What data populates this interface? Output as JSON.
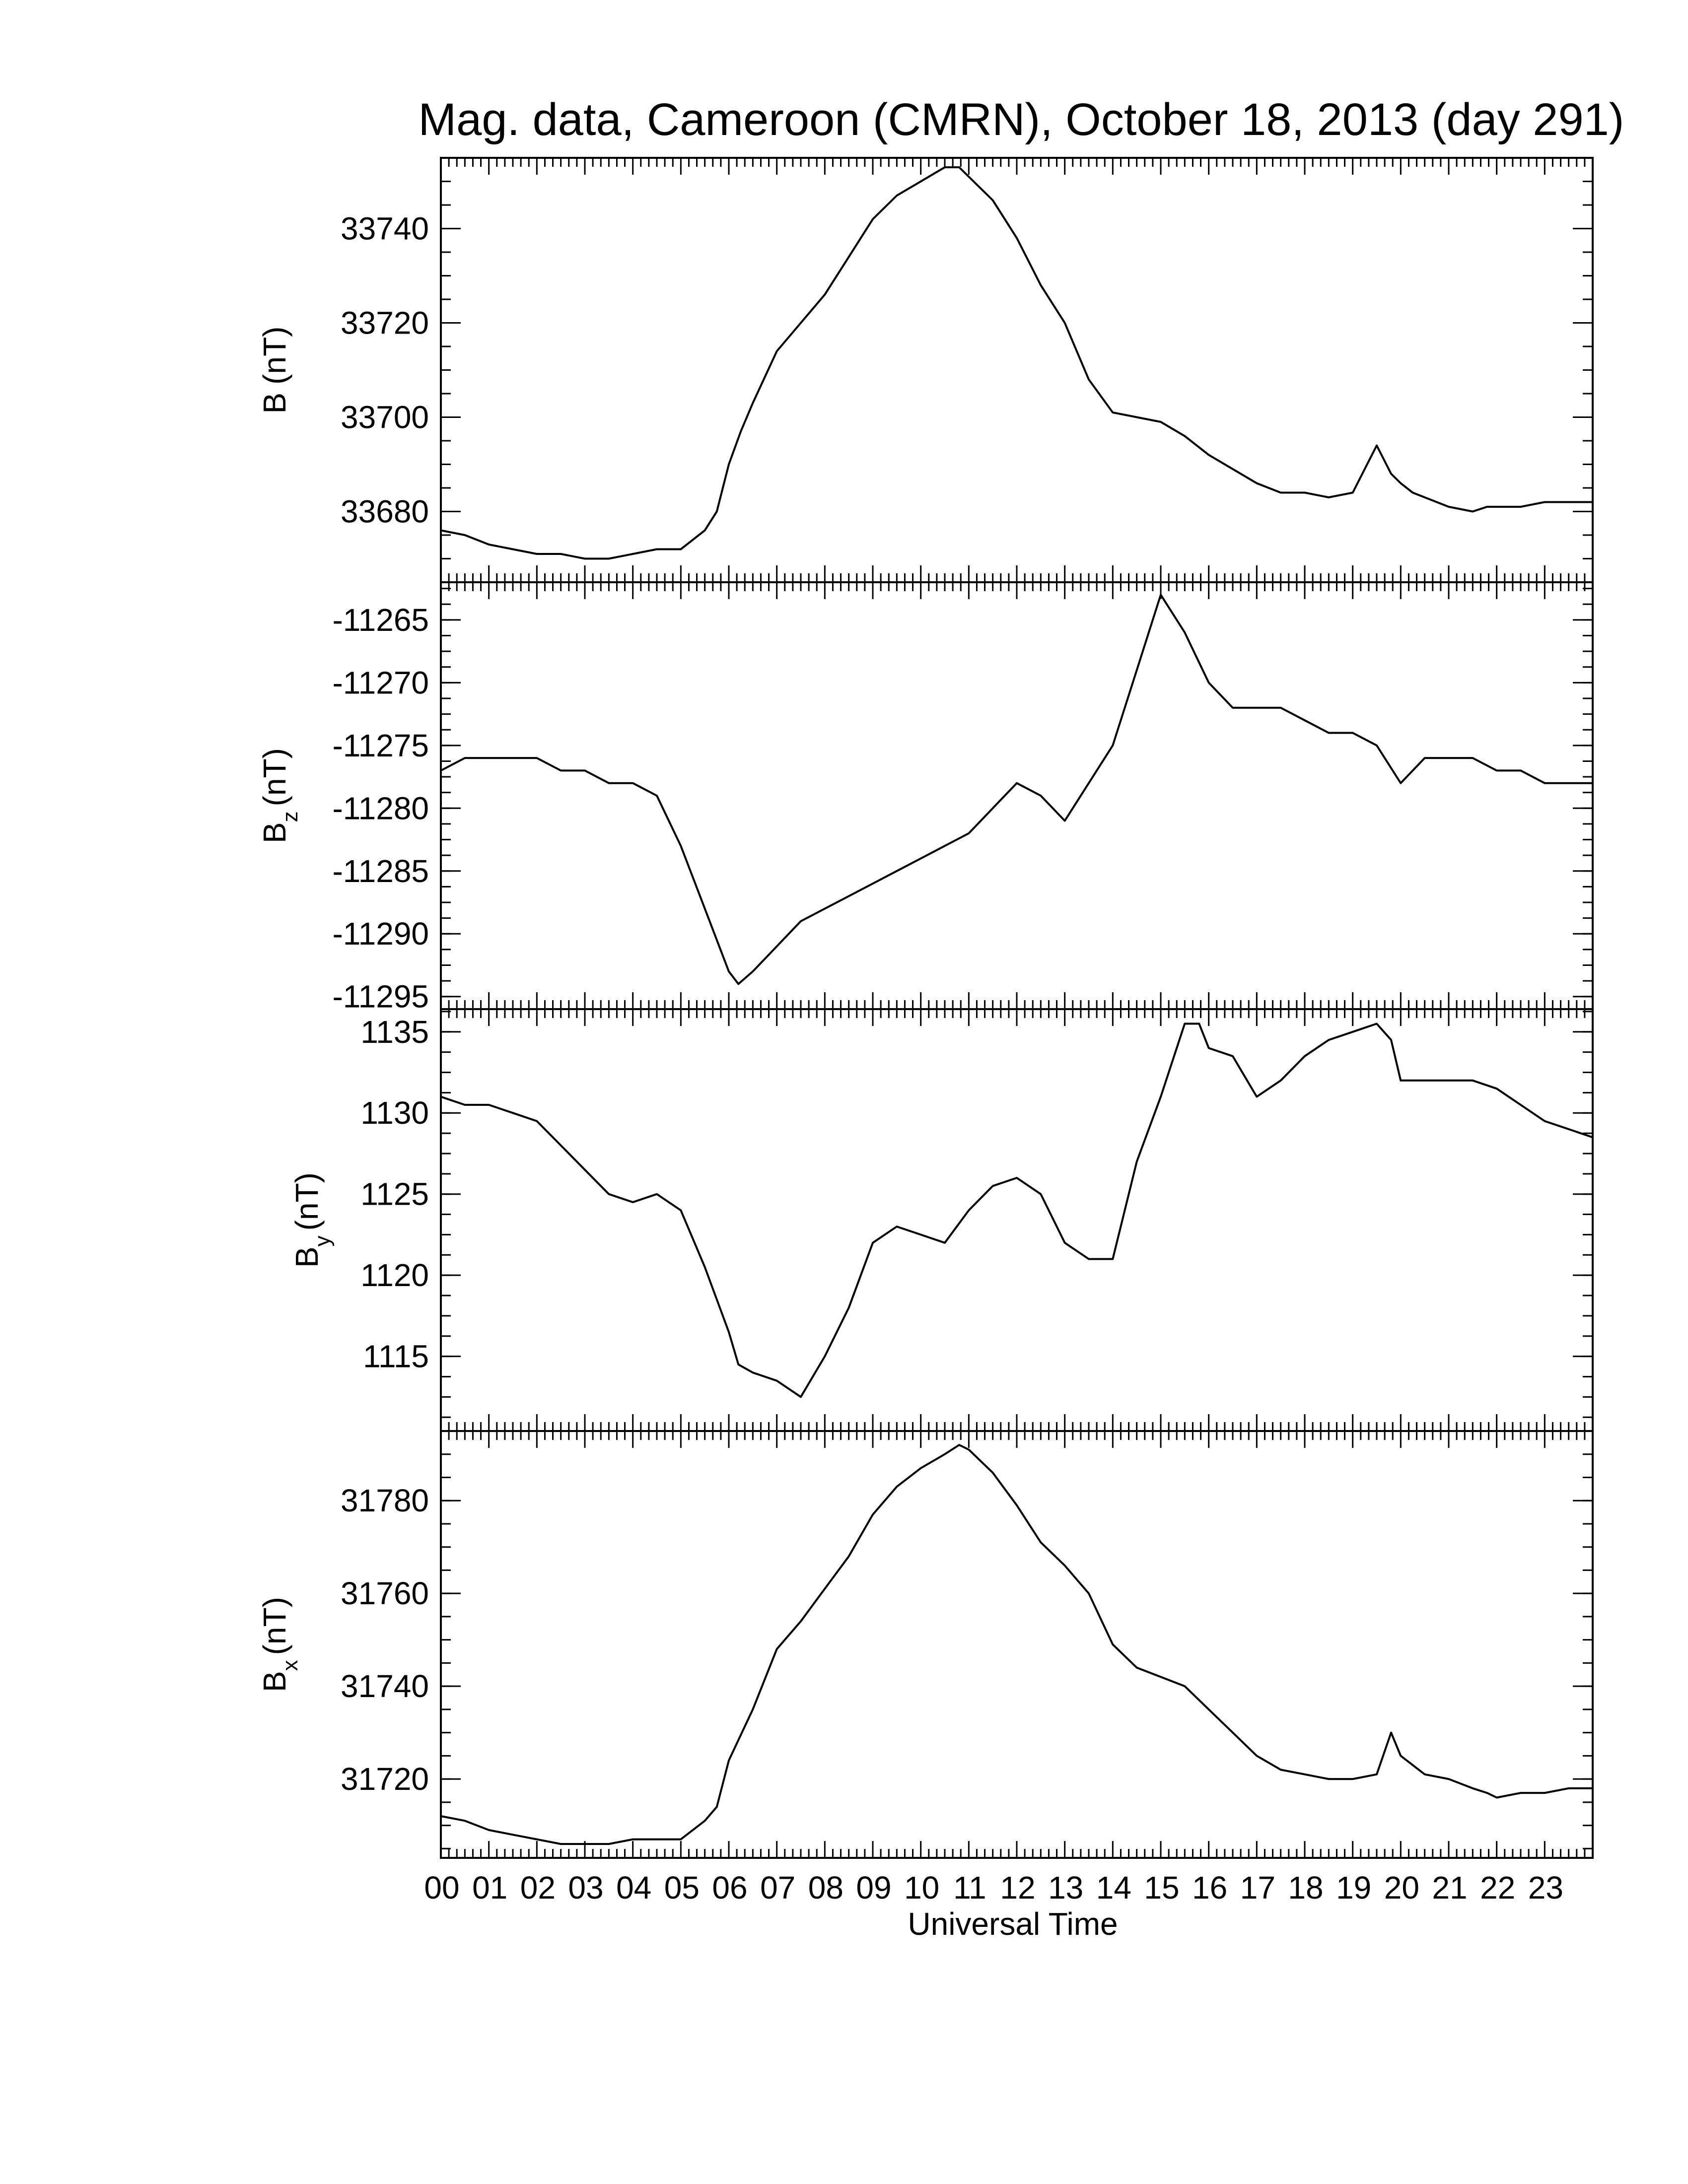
{
  "page": {
    "title": "Mag. data, Cameroon (CMRN), October 18, 2013 (day 291)"
  },
  "colors": {
    "line": "#000000",
    "axes": "#000000",
    "background": "#ffffff"
  },
  "chart_data": [
    {
      "type": "line",
      "title": "Mag. data, Cameroon (CMRN), October 18, 2013 (day 291)",
      "ylabel_main": "B",
      "ylabel_sub": "",
      "ylabel_unit": "(nT)",
      "ylim": [
        33665,
        33755
      ],
      "yticks": [
        33680,
        33700,
        33720,
        33740
      ],
      "xlim": [
        0,
        24
      ],
      "series": [
        {
          "x": [
            0,
            0.5,
            1,
            1.5,
            2,
            2.5,
            3,
            3.5,
            4,
            4.5,
            5,
            5.5,
            5.75,
            6,
            6.25,
            6.5,
            7,
            7.5,
            8,
            8.5,
            9,
            9.5,
            10,
            10.5,
            10.8,
            11,
            11.5,
            12,
            12.5,
            13,
            13.5,
            14,
            14.5,
            15,
            15.5,
            16,
            16.5,
            17,
            17.5,
            18,
            18.5,
            19,
            19.5,
            19.8,
            20,
            20.25,
            20.5,
            21,
            21.5,
            21.8,
            22,
            22.5,
            23,
            23.5,
            24
          ],
          "values": [
            33676,
            33675,
            33673,
            33672,
            33671,
            33671,
            33670,
            33670,
            33671,
            33672,
            33672,
            33676,
            33680,
            33690,
            33697,
            33703,
            33714,
            33720,
            33726,
            33734,
            33742,
            33747,
            33750,
            33753,
            33753,
            33751,
            33746,
            33738,
            33728,
            33720,
            33708,
            33701,
            33700,
            33699,
            33696,
            33692,
            33689,
            33686,
            33684,
            33684,
            33683,
            33684,
            33694,
            33688,
            33686,
            33684,
            33683,
            33681,
            33680,
            33681,
            33681,
            33681,
            33682,
            33682,
            33682
          ]
        }
      ]
    },
    {
      "type": "line",
      "ylabel_main": "B",
      "ylabel_sub": "z",
      "ylabel_unit": "(nT)",
      "ylim": [
        -11296,
        -11262
      ],
      "yticks": [
        -11265,
        -11270,
        -11275,
        -11280,
        -11285,
        -11290,
        -11295
      ],
      "xlim": [
        0,
        24
      ],
      "series": [
        {
          "x": [
            0,
            0.5,
            1,
            1.5,
            2,
            2.5,
            3,
            3.5,
            4,
            4.5,
            5,
            5.5,
            6,
            6.2,
            6.5,
            7,
            7.5,
            8,
            8.5,
            9,
            9.5,
            10,
            10.5,
            11,
            11.5,
            12,
            12.5,
            13,
            13.5,
            14,
            14.5,
            15,
            15.5,
            16,
            16.5,
            17,
            17.5,
            18,
            18.5,
            19,
            19.5,
            20,
            20.5,
            21,
            21.5,
            22,
            22.5,
            23,
            23.5,
            24
          ],
          "values": [
            -11277,
            -11276,
            -11276,
            -11276,
            -11276,
            -11277,
            -11277,
            -11278,
            -11278,
            -11279,
            -11283,
            -11288,
            -11293,
            -11294,
            -11293,
            -11291,
            -11289,
            -11288,
            -11287,
            -11286,
            -11285,
            -11284,
            -11283,
            -11282,
            -11280,
            -11278,
            -11279,
            -11281,
            -11278,
            -11275,
            -11269,
            -11263,
            -11266,
            -11270,
            -11272,
            -11272,
            -11272,
            -11273,
            -11274,
            -11274,
            -11275,
            -11278,
            -11276,
            -11276,
            -11276,
            -11277,
            -11277,
            -11278,
            -11278,
            -11278
          ]
        }
      ]
    },
    {
      "type": "line",
      "ylabel_main": "B",
      "ylabel_sub": "y",
      "ylabel_unit": "(nT)",
      "ylim": [
        1110.4,
        1136.4
      ],
      "yticks": [
        1115,
        1120,
        1125,
        1130,
        1135
      ],
      "xlim": [
        0,
        24
      ],
      "series": [
        {
          "x": [
            0,
            0.5,
            1,
            1.5,
            2,
            2.5,
            3,
            3.5,
            4,
            4.5,
            5,
            5.5,
            6,
            6.2,
            6.5,
            7,
            7.5,
            8,
            8.5,
            9,
            9.5,
            10,
            10.5,
            11,
            11.5,
            12,
            12.5,
            13,
            13.5,
            14,
            14.5,
            15,
            15.5,
            15.8,
            16,
            16.5,
            17,
            17.5,
            18,
            18.5,
            19,
            19.5,
            19.8,
            20,
            20.5,
            21,
            21.5,
            22,
            22.5,
            23,
            23.5,
            24
          ],
          "values": [
            1131,
            1130.5,
            1130.5,
            1130,
            1129.5,
            1128,
            1126.5,
            1125,
            1124.5,
            1125,
            1124,
            1120.5,
            1116.5,
            1114.5,
            1114,
            1113.5,
            1112.5,
            1115,
            1118,
            1122,
            1123,
            1122.5,
            1122,
            1124,
            1125.5,
            1126,
            1125,
            1122,
            1121,
            1121,
            1127,
            1131,
            1135.5,
            1135.5,
            1134,
            1133.5,
            1131,
            1132,
            1133.5,
            1134.5,
            1135,
            1135.5,
            1134.5,
            1132,
            1132,
            1132,
            1132,
            1131.5,
            1130.5,
            1129.5,
            1129,
            1128.5
          ]
        }
      ]
    },
    {
      "type": "line",
      "ylabel_main": "B",
      "ylabel_sub": "x",
      "ylabel_unit": "(nT)",
      "ylim": [
        31703,
        31795
      ],
      "yticks": [
        31720,
        31740,
        31760,
        31780
      ],
      "xlim": [
        0,
        24
      ],
      "xlabel": "Universal Time",
      "xtick_labels": [
        "00",
        "01",
        "02",
        "03",
        "04",
        "05",
        "06",
        "07",
        "08",
        "09",
        "10",
        "11",
        "12",
        "13",
        "14",
        "15",
        "16",
        "17",
        "18",
        "19",
        "20",
        "21",
        "22",
        "23"
      ],
      "series": [
        {
          "x": [
            0,
            0.5,
            1,
            1.5,
            2,
            2.5,
            3,
            3.5,
            4,
            4.5,
            5,
            5.5,
            5.75,
            6,
            6.5,
            7,
            7.5,
            8,
            8.5,
            9,
            9.5,
            10,
            10.5,
            10.8,
            11,
            11.5,
            12,
            12.5,
            13,
            13.5,
            14,
            14.5,
            15,
            15.5,
            16,
            16.5,
            17,
            17.5,
            18,
            18.5,
            19,
            19.5,
            19.8,
            20,
            20.25,
            20.5,
            21,
            21.5,
            21.8,
            22,
            22.5,
            23,
            23.5,
            24
          ],
          "values": [
            31712,
            31711,
            31709,
            31708,
            31707,
            31706,
            31706,
            31706,
            31707,
            31707,
            31707,
            31711,
            31714,
            31724,
            31735,
            31748,
            31754,
            31761,
            31768,
            31777,
            31783,
            31787,
            31790,
            31792,
            31791,
            31786,
            31779,
            31771,
            31766,
            31760,
            31749,
            31744,
            31742,
            31740,
            31735,
            31730,
            31725,
            31722,
            31721,
            31720,
            31720,
            31721,
            31730,
            31725,
            31723,
            31721,
            31720,
            31718,
            31717,
            31716,
            31717,
            31717,
            31718,
            31718
          ]
        }
      ]
    }
  ]
}
